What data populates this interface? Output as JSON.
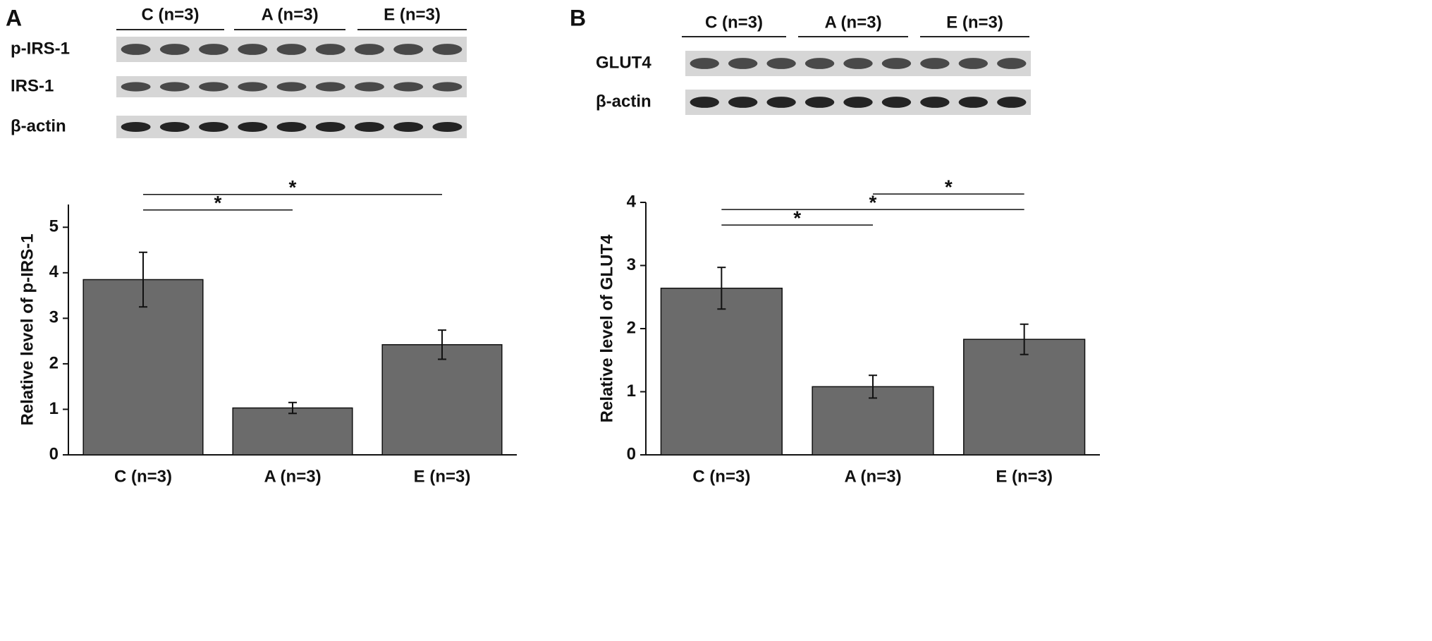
{
  "blots": [
    {
      "panel": "A",
      "groups": [
        "C (n=3)",
        "A (n=3)",
        "E (n=3)"
      ],
      "rows": [
        "p-IRS-1",
        "IRS-1",
        "β-actin"
      ]
    },
    {
      "panel": "B",
      "groups": [
        "C (n=3)",
        "A (n=3)",
        "E (n=3)"
      ],
      "rows": [
        "GLUT4",
        "β-actin"
      ]
    }
  ],
  "chart_data": [
    {
      "type": "bar",
      "y_label": "Relative level of p-IRS-1",
      "categories": [
        "C (n=3)",
        "A (n=3)",
        "E (n=3)"
      ],
      "values": [
        3.85,
        1.03,
        2.42
      ],
      "errors": [
        0.6,
        0.12,
        0.32
      ],
      "color": "#6b6b6b",
      "ylim": [
        0,
        5.5
      ],
      "yticks": [
        0,
        1,
        2,
        3,
        4,
        5
      ],
      "significance": [
        {
          "groups": [
            "C (n=3)",
            "A (n=3)"
          ],
          "label": "*"
        },
        {
          "groups": [
            "C (n=3)",
            "E (n=3)"
          ],
          "label": "*"
        }
      ]
    },
    {
      "type": "bar",
      "y_label": "Relative level of GLUT4",
      "categories": [
        "C (n=3)",
        "A (n=3)",
        "E (n=3)"
      ],
      "values": [
        2.64,
        1.08,
        1.83
      ],
      "errors": [
        0.33,
        0.18,
        0.24
      ],
      "color": "#6b6b6b",
      "ylim": [
        0,
        4
      ],
      "yticks": [
        0,
        1,
        2,
        3,
        4
      ],
      "significance": [
        {
          "groups": [
            "C (n=3)",
            "A (n=3)"
          ],
          "label": "*"
        },
        {
          "groups": [
            "C (n=3)",
            "E (n=3)"
          ],
          "label": "*"
        },
        {
          "groups": [
            "A (n=3)",
            "E (n=3)"
          ],
          "label": "*"
        }
      ]
    }
  ]
}
